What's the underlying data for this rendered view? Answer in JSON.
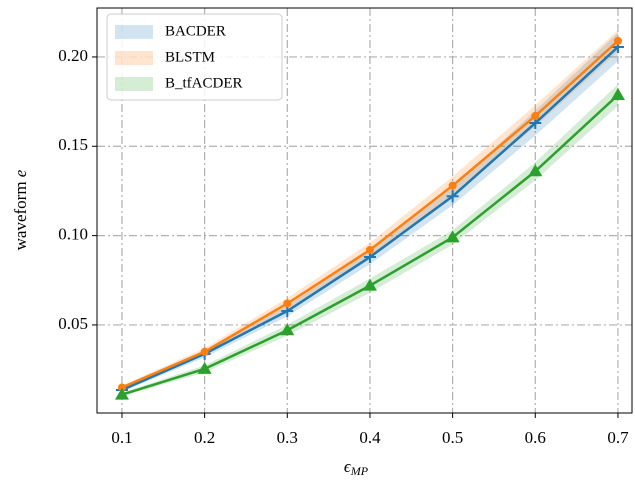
{
  "chart_data": {
    "type": "line",
    "x": [
      0.1,
      0.2,
      0.3,
      0.4,
      0.5,
      0.6,
      0.7
    ],
    "series": [
      {
        "name": "BACDER",
        "color": "#1f77b4",
        "marker": "plus",
        "values": [
          0.0136,
          0.0338,
          0.0578,
          0.088,
          0.122,
          0.163,
          0.2056
        ],
        "lower": [
          0.0126,
          0.0318,
          0.0548,
          0.084,
          0.117,
          0.156,
          0.1976
        ],
        "upper": [
          0.0146,
          0.0358,
          0.0608,
          0.092,
          0.127,
          0.17,
          0.2136
        ]
      },
      {
        "name": "BLSTM",
        "color": "#ff7f0e",
        "marker": "circle",
        "values": [
          0.015,
          0.035,
          0.062,
          0.092,
          0.128,
          0.167,
          0.209
        ],
        "lower": [
          0.014,
          0.033,
          0.059,
          0.088,
          0.123,
          0.161,
          0.203
        ],
        "upper": [
          0.016,
          0.037,
          0.065,
          0.096,
          0.133,
          0.173,
          0.215
        ]
      },
      {
        "name": "B_tfACDER",
        "color": "#2ca02c",
        "marker": "triangle",
        "values": [
          0.011,
          0.0254,
          0.047,
          0.072,
          0.099,
          0.136,
          0.1787
        ],
        "lower": [
          0.01,
          0.0234,
          0.044,
          0.068,
          0.095,
          0.131,
          0.1727
        ],
        "upper": [
          0.012,
          0.0274,
          0.05,
          0.076,
          0.103,
          0.141,
          0.1847
        ]
      }
    ],
    "xlabel": "ϵ",
    "xlabel_sub": "MP",
    "ylabel": "waveform",
    "ylabel_var": "e",
    "xlim": [
      0.0698,
      0.717
    ],
    "xticks": [
      0.1,
      0.2,
      0.3,
      0.4,
      0.5,
      0.6,
      0.7
    ],
    "ylim": [
      0.0007,
      0.2274
    ],
    "yticks": [
      0.05,
      {
        "value": 0.1,
        "label": "0.10"
      },
      0.15,
      {
        "value": 0.2,
        "label": "0.20"
      }
    ],
    "grid": true,
    "legend": "upper left"
  }
}
